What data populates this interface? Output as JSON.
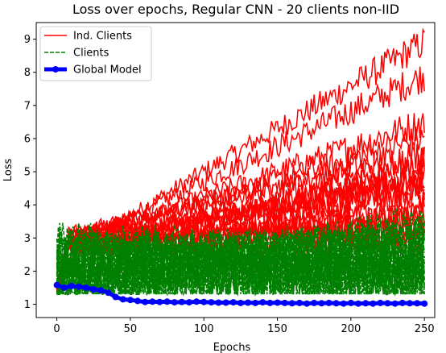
{
  "chart_data": {
    "type": "line",
    "title": "Loss over epochs, Regular CNN - 20 clients non-IID",
    "xlabel": "Epochs",
    "ylabel": "Loss",
    "xlim": [
      -14,
      257
    ],
    "ylim": [
      0.6,
      9.5
    ],
    "xticks": [
      0,
      50,
      100,
      150,
      200,
      250
    ],
    "yticks": [
      1,
      2,
      3,
      4,
      5,
      6,
      7,
      8,
      9
    ],
    "grid": false,
    "legend_position": "top-left",
    "legend": [
      {
        "label": "Ind. Clients",
        "color": "#ff0000",
        "style": "solid"
      },
      {
        "label": "Clients",
        "color": "#008000",
        "style": "dashed"
      },
      {
        "label": "Global Model",
        "color": "#0000ff",
        "style": "solid-marker"
      }
    ],
    "colors": {
      "ind_clients": "#ff0000",
      "clients": "#008000",
      "global": "#0000ff"
    },
    "epochs_max": 250,
    "ind_clients_end_values": [
      8.9,
      7.9,
      6.5,
      6.0,
      5.6,
      5.3,
      5.1,
      4.9,
      4.8,
      4.6,
      4.4,
      4.2,
      4.0,
      3.8,
      3.6,
      3.5,
      3.3,
      3.1,
      3.0,
      2.9
    ],
    "clients_end_values": [
      3.6,
      3.3,
      3.1,
      3.0,
      2.9,
      2.8,
      2.6,
      2.4,
      2.3,
      2.2,
      2.1,
      2.0,
      1.9,
      1.8,
      1.8,
      1.7,
      2.5,
      2.7,
      3.2,
      1.9
    ],
    "global_model": {
      "x": [
        0,
        5,
        10,
        15,
        20,
        25,
        30,
        35,
        40,
        45,
        50,
        55,
        60,
        65,
        70,
        75,
        80,
        85,
        90,
        95,
        100,
        105,
        110,
        115,
        120,
        125,
        130,
        135,
        140,
        145,
        150,
        155,
        160,
        165,
        170,
        175,
        180,
        185,
        190,
        195,
        200,
        205,
        210,
        215,
        220,
        225,
        230,
        235,
        240,
        245,
        250
      ],
      "y": [
        1.58,
        1.5,
        1.55,
        1.53,
        1.5,
        1.45,
        1.42,
        1.35,
        1.22,
        1.15,
        1.13,
        1.1,
        1.07,
        1.08,
        1.07,
        1.08,
        1.06,
        1.07,
        1.06,
        1.08,
        1.07,
        1.06,
        1.05,
        1.05,
        1.06,
        1.04,
        1.05,
        1.04,
        1.06,
        1.04,
        1.05,
        1.04,
        1.03,
        1.04,
        1.02,
        1.04,
        1.03,
        1.04,
        1.03,
        1.02,
        1.04,
        1.02,
        1.03,
        1.02,
        1.04,
        1.03,
        1.02,
        1.04,
        1.03,
        1.03,
        1.02
      ]
    }
  }
}
